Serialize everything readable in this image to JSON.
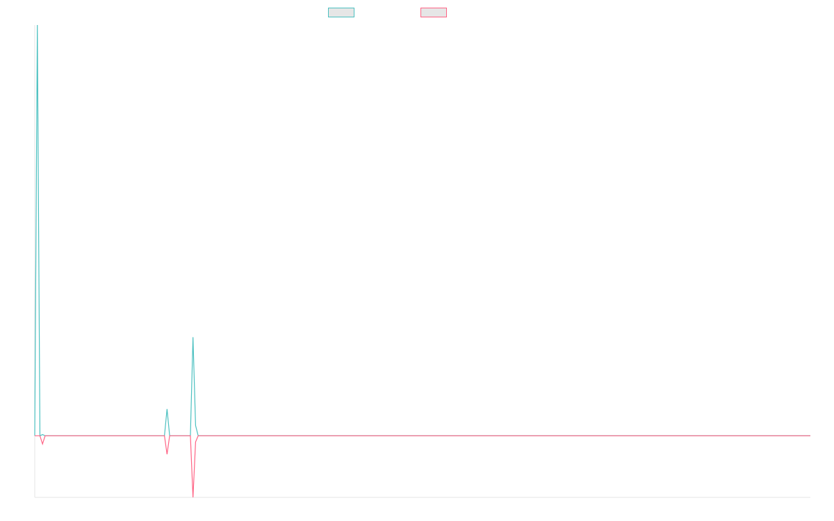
{
  "chart_data": {
    "type": "line",
    "title": "",
    "xlabel": "",
    "ylabel": "",
    "grid": false,
    "legend_position": "top",
    "ylim": [
      -0.15,
      1.0
    ],
    "x_count": 300,
    "series": [
      {
        "color": "#4bc0c0",
        "points": [
          [
            0,
            0
          ],
          [
            1,
            1.0
          ],
          [
            2,
            0
          ],
          [
            3,
            0.003
          ],
          [
            4,
            0
          ],
          [
            5,
            0
          ],
          [
            6,
            0
          ],
          [
            7,
            0
          ],
          [
            8,
            0
          ],
          [
            9,
            0
          ],
          [
            50,
            0
          ],
          [
            51,
            0.065
          ],
          [
            52,
            0
          ],
          [
            53,
            0
          ],
          [
            54,
            0
          ],
          [
            55,
            0
          ],
          [
            60,
            0
          ],
          [
            61,
            0.24
          ],
          [
            62,
            0.025
          ],
          [
            63,
            0
          ],
          [
            299,
            0
          ]
        ]
      },
      {
        "color": "#ff6384",
        "points": [
          [
            0,
            0
          ],
          [
            1,
            0
          ],
          [
            2,
            0
          ],
          [
            3,
            -0.02
          ],
          [
            4,
            0
          ],
          [
            5,
            0
          ],
          [
            6,
            0
          ],
          [
            7,
            0
          ],
          [
            8,
            0
          ],
          [
            9,
            0
          ],
          [
            50,
            0
          ],
          [
            51,
            -0.045
          ],
          [
            52,
            0
          ],
          [
            53,
            0
          ],
          [
            54,
            0
          ],
          [
            55,
            0
          ],
          [
            60,
            0
          ],
          [
            61,
            -0.15
          ],
          [
            62,
            -0.015
          ],
          [
            63,
            0
          ],
          [
            299,
            0
          ]
        ]
      }
    ]
  }
}
